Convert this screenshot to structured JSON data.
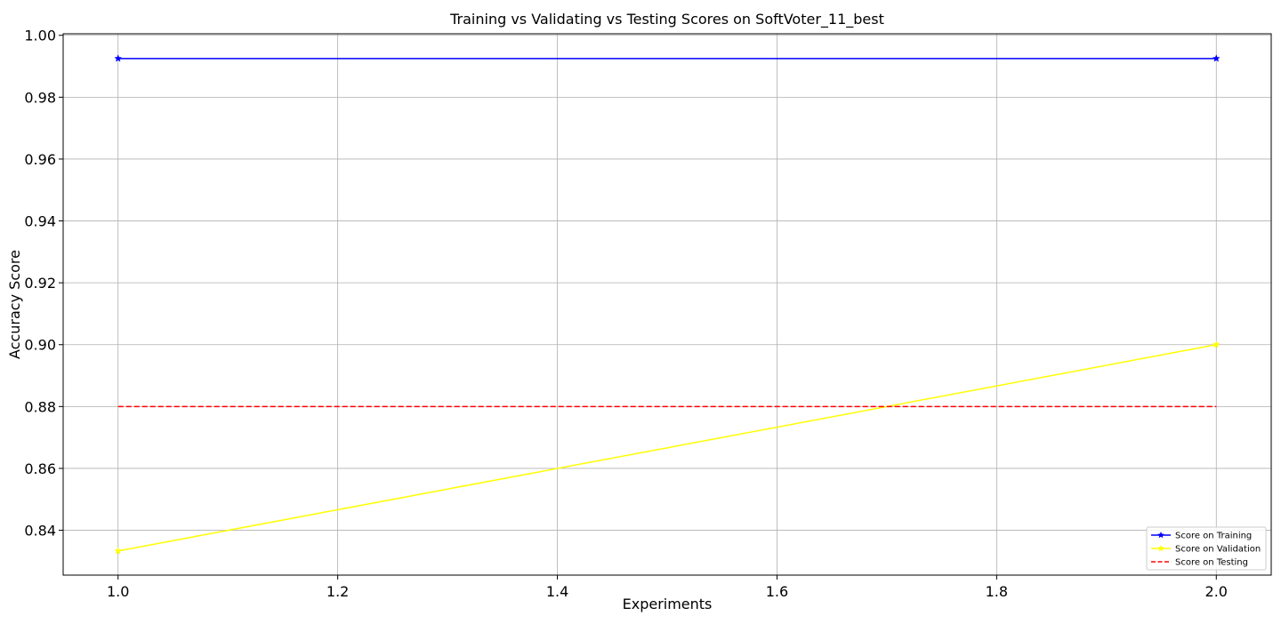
{
  "chart_data": {
    "type": "line",
    "title": "Training vs Validating vs Testing Scores on SoftVoter_11_best",
    "xlabel": "Experiments",
    "ylabel": "Accuracy Score",
    "xlim": [
      0.95,
      2.05
    ],
    "ylim": [
      0.8255,
      1.0005
    ],
    "xticks": [
      1.0,
      1.2,
      1.4,
      1.6,
      1.8,
      2.0
    ],
    "xtick_labels": [
      "1.0",
      "1.2",
      "1.4",
      "1.6",
      "1.8",
      "2.0"
    ],
    "yticks": [
      0.84,
      0.86,
      0.88,
      0.9,
      0.92,
      0.94,
      0.96,
      0.98,
      1.0
    ],
    "ytick_labels": [
      "0.84",
      "0.86",
      "0.88",
      "0.90",
      "0.92",
      "0.94",
      "0.96",
      "0.98",
      "1.00"
    ],
    "grid": true,
    "legend_position": "bottom-right",
    "series": [
      {
        "name": "Score on Training",
        "x": [
          1.0,
          2.0
        ],
        "values": [
          0.9925,
          0.9925
        ],
        "color": "#0000ff",
        "linestyle": "solid",
        "marker": "star"
      },
      {
        "name": "Score on Validation",
        "x": [
          1.0,
          2.0
        ],
        "values": [
          0.8333,
          0.9
        ],
        "color": "#ffff00",
        "linestyle": "solid",
        "marker": "star"
      },
      {
        "name": "Score on Testing",
        "x": [
          1.0,
          2.0
        ],
        "values": [
          0.88,
          0.88
        ],
        "color": "#ff0000",
        "linestyle": "dashed",
        "marker": "none"
      }
    ]
  }
}
